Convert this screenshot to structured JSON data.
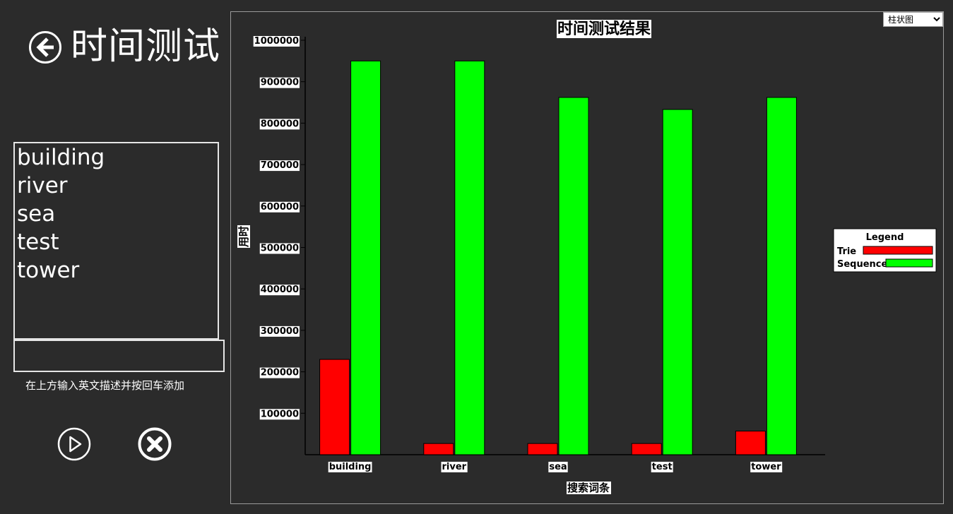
{
  "header": {
    "title": "时间测试",
    "back_icon": "arrow-left-circle-icon"
  },
  "word_list": {
    "items": [
      "building",
      "river",
      "sea",
      "test",
      "tower"
    ]
  },
  "word_input": {
    "value": "",
    "hint": "在上方输入英文描述并按回车添加"
  },
  "actions": {
    "play_icon": "play-circle-icon",
    "clear_icon": "close-circle-icon"
  },
  "chart_controls": {
    "chart_type_options": [
      "柱状图"
    ],
    "chart_type_selected": "柱状图"
  },
  "colors": {
    "background": "#2b2b2b",
    "trie": "#ff0000",
    "sequence": "#00ff00"
  },
  "chart_data": {
    "type": "bar",
    "title": "时间测试结果",
    "xlabel": "搜索词条",
    "ylabel": "用时",
    "categories": [
      "building",
      "river",
      "sea",
      "test",
      "tower"
    ],
    "series": [
      {
        "name": "Trie",
        "values": [
          230000,
          27000,
          27000,
          27000,
          57000
        ]
      },
      {
        "name": "Sequence",
        "values": [
          950000,
          950000,
          862000,
          833000,
          862000
        ]
      }
    ],
    "yticks": [
      "100000",
      "200000",
      "300000",
      "400000",
      "500000",
      "600000",
      "700000",
      "800000",
      "900000",
      "1000000"
    ],
    "ylim": [
      0,
      1000000
    ],
    "legend_title": "Legend",
    "legend_position": "right",
    "grid": false
  }
}
